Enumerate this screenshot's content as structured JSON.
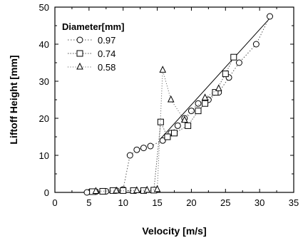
{
  "chart_data": {
    "type": "scatter",
    "title": "",
    "xlabel": "Velocity [m/s]",
    "ylabel": "Liftoff Height [mm]",
    "xlim": [
      0,
      35
    ],
    "ylim": [
      0,
      50
    ],
    "xticks": [
      0,
      5,
      10,
      15,
      20,
      25,
      30,
      35
    ],
    "yticks": [
      0,
      10,
      20,
      30,
      40,
      50
    ],
    "grid": false,
    "legend": {
      "title": "Diameter[mm]",
      "position": "top-left"
    },
    "series": [
      {
        "name": "0.97",
        "marker": "circle",
        "line": "dotted",
        "points": [
          [
            4.7,
            0
          ],
          [
            6,
            0.2
          ],
          [
            7.5,
            0.3
          ],
          [
            9,
            0.5
          ],
          [
            10,
            0.8
          ],
          [
            11,
            10
          ],
          [
            12,
            11.5
          ],
          [
            13,
            12
          ],
          [
            14,
            12.5
          ],
          [
            15.8,
            14
          ],
          [
            17,
            16
          ],
          [
            18,
            18
          ],
          [
            19,
            20
          ],
          [
            20,
            22
          ],
          [
            21,
            24
          ],
          [
            22.5,
            25
          ],
          [
            24,
            27
          ],
          [
            25.5,
            31
          ],
          [
            27,
            35
          ],
          [
            29.5,
            40
          ],
          [
            31.5,
            47.5
          ]
        ]
      },
      {
        "name": "0.74",
        "marker": "square",
        "line": "dotted",
        "points": [
          [
            5.5,
            0.2
          ],
          [
            7,
            0.3
          ],
          [
            8.5,
            0.5
          ],
          [
            10,
            0.5
          ],
          [
            11.5,
            0.5
          ],
          [
            13,
            0.5
          ],
          [
            14.5,
            0.6
          ],
          [
            15.5,
            19
          ],
          [
            16.5,
            15
          ],
          [
            17.5,
            16
          ],
          [
            19.5,
            18
          ],
          [
            21,
            22
          ],
          [
            22,
            24
          ],
          [
            23.5,
            27
          ],
          [
            25,
            32
          ],
          [
            26.2,
            36.5
          ]
        ]
      },
      {
        "name": "0.58",
        "marker": "triangle",
        "line": "dotted",
        "points": [
          [
            6,
            0.3
          ],
          [
            9,
            0.4
          ],
          [
            12,
            0.5
          ],
          [
            13.5,
            0.6
          ],
          [
            15,
            0.8
          ],
          [
            15.8,
            33
          ],
          [
            17,
            25
          ],
          [
            19,
            19.5
          ],
          [
            22,
            25.5
          ],
          [
            24,
            28
          ]
        ]
      }
    ],
    "fit_line": {
      "points": [
        [
          15.5,
          14.5
        ],
        [
          31.5,
          47
        ]
      ]
    }
  }
}
